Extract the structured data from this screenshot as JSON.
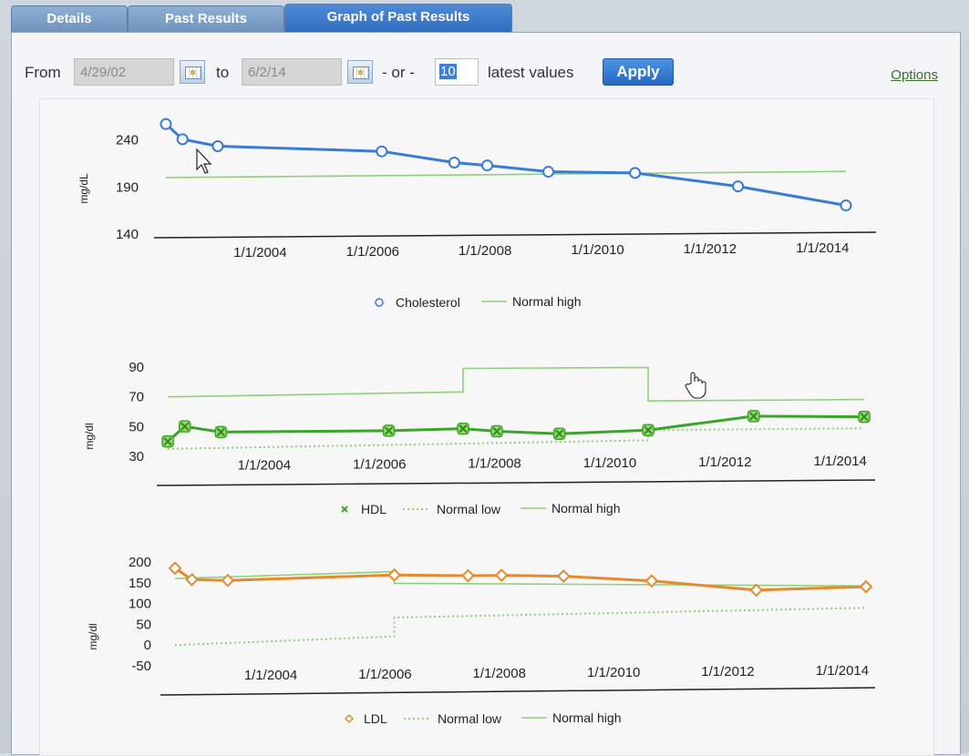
{
  "tabs": [
    {
      "label": "Details",
      "active": false
    },
    {
      "label": "Past Results",
      "active": false
    },
    {
      "label": "Graph of Past Results",
      "active": true
    }
  ],
  "toolbar": {
    "from_label": "From",
    "from_value": "4/29/02",
    "to_label": "to",
    "to_value": "6/2/14",
    "or_label": "- or -",
    "count_value": "10",
    "latest_label": "latest values",
    "apply_label": "Apply",
    "options_label": "Options"
  },
  "icons": {
    "calendar": "calendar-icon",
    "cursor": "arrow-pointer-icon",
    "hand": "hand-pointer-icon"
  },
  "colors": {
    "cholesterol": "#3a7bd5",
    "hdl": "#3aa52a",
    "ldl": "#e58a2e",
    "normal_line": "#8fd07a"
  },
  "chart_data": [
    {
      "type": "line",
      "ylabel": "mg/dL",
      "yticks": [
        140,
        190,
        240
      ],
      "ylim": [
        140,
        262
      ],
      "xlim": [
        "2002-04-29",
        "2014-06-02"
      ],
      "xticks": [
        "1/1/2004",
        "1/1/2006",
        "1/1/2008",
        "1/1/2010",
        "1/1/2012",
        "1/1/2014"
      ],
      "grid": false,
      "legend_position": "bottom-center",
      "series": [
        {
          "name": "Cholesterol",
          "style": "circle-line",
          "x": [
            "2002-04-29",
            "2002-08-15",
            "2003-04-01",
            "2006-03-01",
            "2007-06-15",
            "2008-01-15",
            "2009-02-15",
            "2010-09-01",
            "2012-07-01",
            "2014-06-02"
          ],
          "values": [
            257,
            241,
            234,
            230,
            218,
            215,
            208,
            207,
            191,
            167
          ]
        },
        {
          "name": "Normal high",
          "style": "line",
          "x": [
            "2002-04-29",
            "2014-06-02"
          ],
          "values": [
            200,
            210
          ]
        }
      ]
    },
    {
      "type": "line",
      "ylabel": "mg/dl",
      "yticks": [
        30,
        50,
        70,
        90
      ],
      "ylim": [
        30,
        90
      ],
      "xlim": [
        "2002-04-29",
        "2014-06-02"
      ],
      "xticks": [
        "1/1/2004",
        "1/1/2006",
        "1/1/2008",
        "1/1/2010",
        "1/1/2012",
        "1/1/2014"
      ],
      "grid": false,
      "legend_position": "bottom-center",
      "series": [
        {
          "name": "HDL",
          "style": "x-line",
          "x": [
            "2002-04-29",
            "2002-08-15",
            "2003-04-01",
            "2006-03-01",
            "2007-06-15",
            "2008-01-15",
            "2009-02-15",
            "2010-09-01",
            "2012-07-01",
            "2014-06-02"
          ],
          "values": [
            40,
            50,
            46,
            46,
            47,
            45,
            43,
            45,
            54,
            53
          ]
        },
        {
          "name": "Normal low",
          "style": "dotted",
          "x": [
            "2002-04-29",
            "2010-09-01",
            "2010-09-01",
            "2014-06-02"
          ],
          "values": [
            35,
            38,
            45,
            45
          ]
        },
        {
          "name": "Normal high",
          "style": "line",
          "x": [
            "2002-04-29",
            "2007-06-15",
            "2007-06-15",
            "2010-09-01",
            "2010-09-01",
            "2014-06-02"
          ],
          "values": [
            70,
            72,
            88,
            88,
            65,
            65
          ]
        }
      ]
    },
    {
      "type": "line",
      "ylabel": "mg/dl",
      "yticks": [
        -50,
        0,
        50,
        100,
        150,
        200
      ],
      "ylim": [
        -50,
        200
      ],
      "xlim": [
        "2002-04-29",
        "2014-06-02"
      ],
      "xticks": [
        "1/1/2004",
        "1/1/2006",
        "1/1/2008",
        "1/1/2010",
        "1/1/2012",
        "1/1/2014"
      ],
      "grid": false,
      "legend_position": "bottom-center",
      "series": [
        {
          "name": "LDL",
          "style": "diamond-line",
          "x": [
            "2002-04-29",
            "2002-08-15",
            "2003-04-01",
            "2006-03-01",
            "2007-06-15",
            "2008-01-15",
            "2009-02-15",
            "2010-09-01",
            "2012-07-01",
            "2014-06-02"
          ],
          "values": [
            185,
            157,
            154,
            162,
            158,
            158,
            154,
            140,
            115,
            120
          ]
        },
        {
          "name": "Normal low",
          "style": "dotted",
          "x": [
            "2002-04-29",
            "2006-03-01",
            "2006-03-01",
            "2014-06-02"
          ],
          "values": [
            0,
            15,
            60,
            70
          ]
        },
        {
          "name": "Normal high",
          "style": "line",
          "x": [
            "2002-04-29",
            "2006-03-01",
            "2006-03-01",
            "2014-06-02"
          ],
          "values": [
            160,
            170,
            142,
            122
          ]
        }
      ]
    }
  ]
}
